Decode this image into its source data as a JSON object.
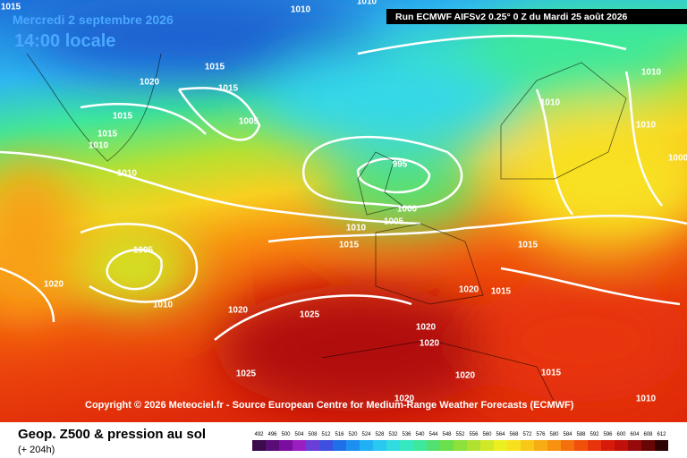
{
  "header": {
    "date": "Mercredi 2 septembre 2026",
    "time": "14:00 locale"
  },
  "run": "Run ECMWF AIFSv2 0.25° 0 Z du Mardi 25 août 2026",
  "copyright": "Copyright © 2026 Meteociel.fr - Source European Centre for Medium-Range Weather Forecasts (ECMWF)",
  "footer": {
    "title": "Geop. Z500 & pression au sol",
    "subtitle": "(+ 204h)"
  },
  "legend": {
    "items": [
      {
        "label": 492,
        "color": "#3b0b4b"
      },
      {
        "label": 496,
        "color": "#5a0c78"
      },
      {
        "label": 500,
        "color": "#7a0ea0"
      },
      {
        "label": 504,
        "color": "#9b1fc0"
      },
      {
        "label": 508,
        "color": "#6a3fd8"
      },
      {
        "label": 512,
        "color": "#3f50e0"
      },
      {
        "label": 516,
        "color": "#1f6fe8"
      },
      {
        "label": 520,
        "color": "#1d8ff0"
      },
      {
        "label": 524,
        "color": "#22b0f5"
      },
      {
        "label": 528,
        "color": "#29c8f0"
      },
      {
        "label": 532,
        "color": "#30dce0"
      },
      {
        "label": 536,
        "color": "#36e8c0"
      },
      {
        "label": 540,
        "color": "#3ee89a"
      },
      {
        "label": 544,
        "color": "#52e070"
      },
      {
        "label": 548,
        "color": "#6ce04a"
      },
      {
        "label": 552,
        "color": "#8ee03a"
      },
      {
        "label": 556,
        "color": "#b0e030"
      },
      {
        "label": 560,
        "color": "#d0e828"
      },
      {
        "label": 564,
        "color": "#ecf020"
      },
      {
        "label": 568,
        "color": "#f8e020"
      },
      {
        "label": 572,
        "color": "#f8c818"
      },
      {
        "label": 576,
        "color": "#f8ac14"
      },
      {
        "label": 580,
        "color": "#f89010"
      },
      {
        "label": 584,
        "color": "#f4700e"
      },
      {
        "label": 588,
        "color": "#f0500c"
      },
      {
        "label": 592,
        "color": "#e8340a"
      },
      {
        "label": 596,
        "color": "#d81a0a"
      },
      {
        "label": 600,
        "color": "#c0100a"
      },
      {
        "label": 604,
        "color": "#980a0a"
      },
      {
        "label": 608,
        "color": "#680606"
      },
      {
        "label": 612,
        "color": "#300303"
      }
    ]
  },
  "isobars": [
    "1015",
    "1010",
    "1010",
    "1015",
    "1015",
    "1020",
    "1015",
    "1005",
    "1015",
    "1010",
    "1010",
    "995",
    "1000",
    "1005",
    "1010",
    "1015",
    "1005",
    "1020",
    "1010",
    "1020",
    "1025",
    "1020",
    "1015",
    "1020",
    "1020",
    "1020",
    "1015",
    "1025",
    "1010",
    "1010",
    "1010",
    "1000",
    "1015",
    "1010",
    "1020"
  ]
}
